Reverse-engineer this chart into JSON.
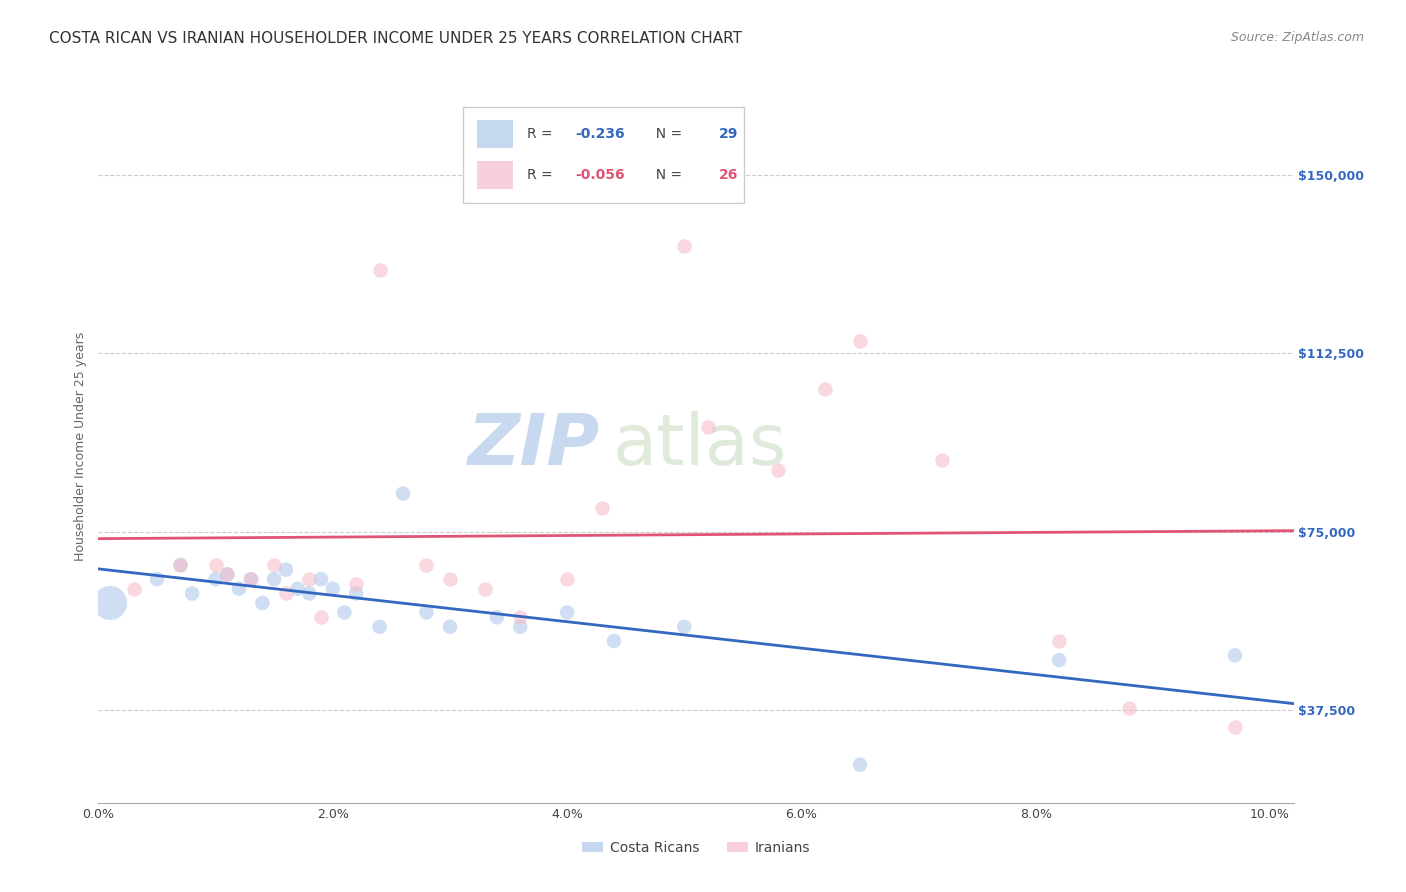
{
  "title": "COSTA RICAN VS IRANIAN HOUSEHOLDER INCOME UNDER 25 YEARS CORRELATION CHART",
  "source": "Source: ZipAtlas.com",
  "ylabel": "Householder Income Under 25 years",
  "xlabel_ticks": [
    "0.0%",
    "2.0%",
    "4.0%",
    "6.0%",
    "8.0%",
    "10.0%"
  ],
  "xlabel_vals": [
    0.0,
    0.02,
    0.04,
    0.06,
    0.08,
    0.1
  ],
  "ylabel_ticks": [
    "$37,500",
    "$75,000",
    "$112,500",
    "$150,000"
  ],
  "ylabel_vals": [
    37500,
    75000,
    112500,
    150000
  ],
  "xlim": [
    0.0,
    0.102
  ],
  "ylim": [
    18000,
    168000
  ],
  "watermark_zip": "ZIP",
  "watermark_atlas": "atlas",
  "legend1_R": "-0.236",
  "legend1_N": "29",
  "legend2_R": "-0.056",
  "legend2_N": "26",
  "blue_color": "#a8c4e8",
  "pink_color": "#f5b8c8",
  "blue_line_color": "#3468c0",
  "pink_line_color": "#e05575",
  "costa_rican_x": [
    0.001,
    0.005,
    0.007,
    0.008,
    0.01,
    0.011,
    0.012,
    0.013,
    0.014,
    0.015,
    0.016,
    0.017,
    0.018,
    0.019,
    0.02,
    0.021,
    0.022,
    0.024,
    0.026,
    0.028,
    0.03,
    0.034,
    0.036,
    0.04,
    0.044,
    0.05,
    0.065,
    0.082,
    0.097
  ],
  "costa_rican_y": [
    60000,
    65000,
    68000,
    62000,
    65000,
    66000,
    63000,
    65000,
    60000,
    65000,
    67000,
    63000,
    62000,
    65000,
    63000,
    58000,
    62000,
    55000,
    83000,
    58000,
    55000,
    57000,
    55000,
    58000,
    52000,
    55000,
    26000,
    48000,
    49000
  ],
  "iranian_x": [
    0.003,
    0.007,
    0.01,
    0.011,
    0.013,
    0.015,
    0.016,
    0.018,
    0.019,
    0.022,
    0.024,
    0.028,
    0.03,
    0.033,
    0.036,
    0.04,
    0.043,
    0.05,
    0.052,
    0.058,
    0.062,
    0.065,
    0.072,
    0.082,
    0.088,
    0.097
  ],
  "iranian_y": [
    63000,
    68000,
    68000,
    66000,
    65000,
    68000,
    62000,
    65000,
    57000,
    64000,
    130000,
    68000,
    65000,
    63000,
    57000,
    65000,
    80000,
    135000,
    97000,
    88000,
    105000,
    115000,
    90000,
    52000,
    38000,
    34000
  ],
  "costa_rican_size_large": [
    0.001
  ],
  "title_fontsize": 11,
  "source_fontsize": 9,
  "axis_label_fontsize": 9,
  "tick_fontsize": 9,
  "legend_fontsize": 10,
  "watermark_fontsize_zip": 52,
  "watermark_fontsize_atlas": 52,
  "marker_size": 110,
  "marker_size_large": 600,
  "background_color": "#ffffff",
  "grid_color": "#cccccc"
}
